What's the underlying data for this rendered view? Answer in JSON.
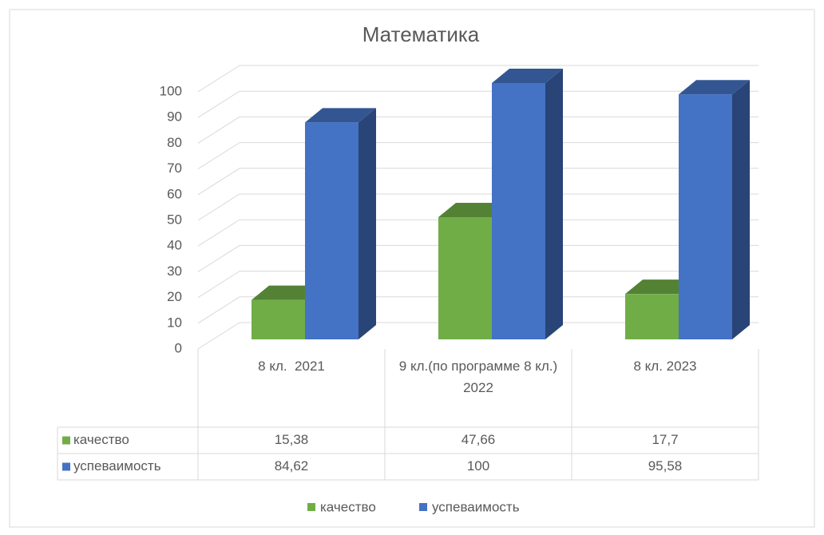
{
  "chart_data": {
    "type": "bar3d",
    "title": "Математика",
    "categories": [
      "8 кл.  2021",
      "9 кл.(по программе 8 кл.) 2022",
      "8 кл. 2023"
    ],
    "series": [
      {
        "name": "качество",
        "color": "#70ad47",
        "values": [
          15.38,
          47.66,
          17.7
        ],
        "value_labels": [
          "15,38",
          "47,66",
          "17,7"
        ]
      },
      {
        "name": "успеваимость",
        "color": "#4472c4",
        "values": [
          84.62,
          100,
          95.58
        ],
        "value_labels": [
          "84,62",
          "100",
          "95,58"
        ]
      }
    ],
    "ylim": [
      0,
      100
    ],
    "yticks": [
      0,
      10,
      20,
      30,
      40,
      50,
      60,
      70,
      80,
      90,
      100
    ],
    "grid": true,
    "legend": "bottom",
    "data_table": true
  }
}
